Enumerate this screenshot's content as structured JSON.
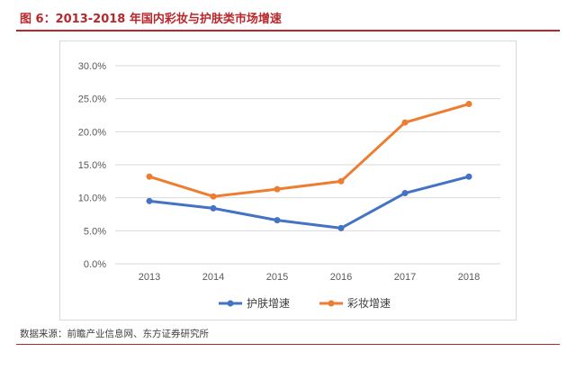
{
  "header": {
    "title": "图 6：2013-2018 年国内彩妆与护肤类市场增速"
  },
  "footer": {
    "source": "数据来源：前瞻产业信息网、东方证券研究所"
  },
  "colors": {
    "accent": "#b8272c",
    "series_skincare": "#4472c4",
    "series_makeup": "#ed7d31",
    "grid": "#d9d9d9"
  },
  "chart_data": {
    "type": "line",
    "title": "",
    "xlabel": "",
    "ylabel": "",
    "x": [
      "2013",
      "2014",
      "2015",
      "2016",
      "2017",
      "2018"
    ],
    "ylim": [
      0,
      30
    ],
    "yticks": [
      0,
      5,
      10,
      15,
      20,
      25,
      30
    ],
    "ytick_labels": [
      "0.0%",
      "5.0%",
      "10.0%",
      "15.0%",
      "20.0%",
      "25.0%",
      "30.0%"
    ],
    "grid": true,
    "legend": "bottom",
    "series": [
      {
        "name": "护肤增速",
        "values": [
          9.5,
          8.4,
          6.6,
          5.4,
          10.7,
          13.2
        ]
      },
      {
        "name": "彩妆增速",
        "values": [
          13.2,
          10.2,
          11.3,
          12.5,
          21.4,
          24.2
        ]
      }
    ]
  }
}
